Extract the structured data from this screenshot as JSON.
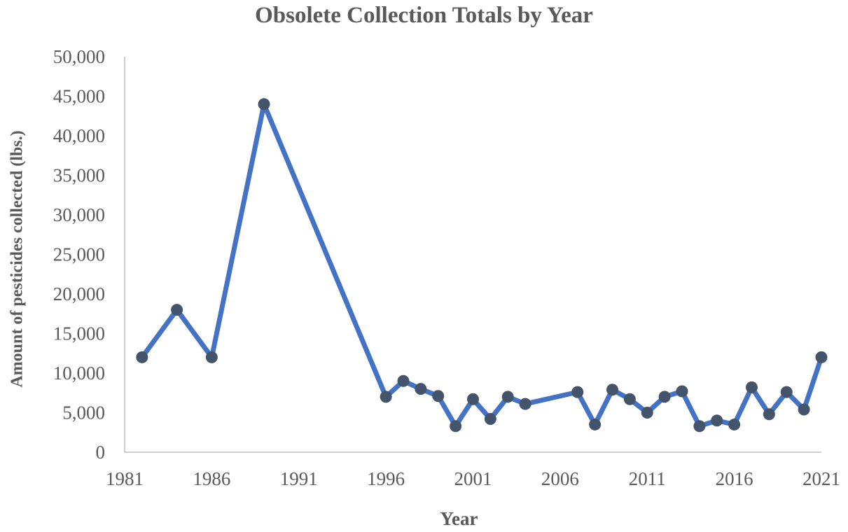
{
  "chart_data": {
    "type": "line",
    "title": "Obsolete Collection Totals by Year",
    "xlabel": "Year",
    "ylabel": "Amount of pesticides collected (lbs.)",
    "xlim": [
      1981,
      2021
    ],
    "ylim": [
      0,
      50000
    ],
    "x_ticks": [
      "1981",
      "1986",
      "1991",
      "1996",
      "2001",
      "2006",
      "2011",
      "2016",
      "2021"
    ],
    "y_ticks": [
      "0",
      "5,000",
      "10,000",
      "15,000",
      "20,000",
      "25,000",
      "30,000",
      "35,000",
      "40,000",
      "45,000",
      "50,000"
    ],
    "grid": false,
    "legend": "none",
    "series": [
      {
        "x": [
          1982,
          1984,
          1986,
          1989,
          1996,
          1997,
          1998,
          1999,
          2000,
          2001,
          2002,
          2003,
          2004,
          2007,
          2008,
          2009,
          2010,
          2011,
          2012,
          2013,
          2014,
          2015,
          2016,
          2017,
          2018,
          2019,
          2020,
          2021
        ],
        "values": [
          12000,
          18000,
          12000,
          44000,
          7000,
          9000,
          8000,
          7100,
          3300,
          6700,
          4200,
          7000,
          6100,
          7600,
          3500,
          7900,
          6700,
          5000,
          7000,
          7700,
          3300,
          4000,
          3500,
          8200,
          4800,
          7600,
          5400,
          12000
        ]
      }
    ],
    "colors": {
      "line": "#4472C4",
      "marker": "#44546A",
      "axis": "#BFBFBF",
      "text": "#595959"
    }
  }
}
